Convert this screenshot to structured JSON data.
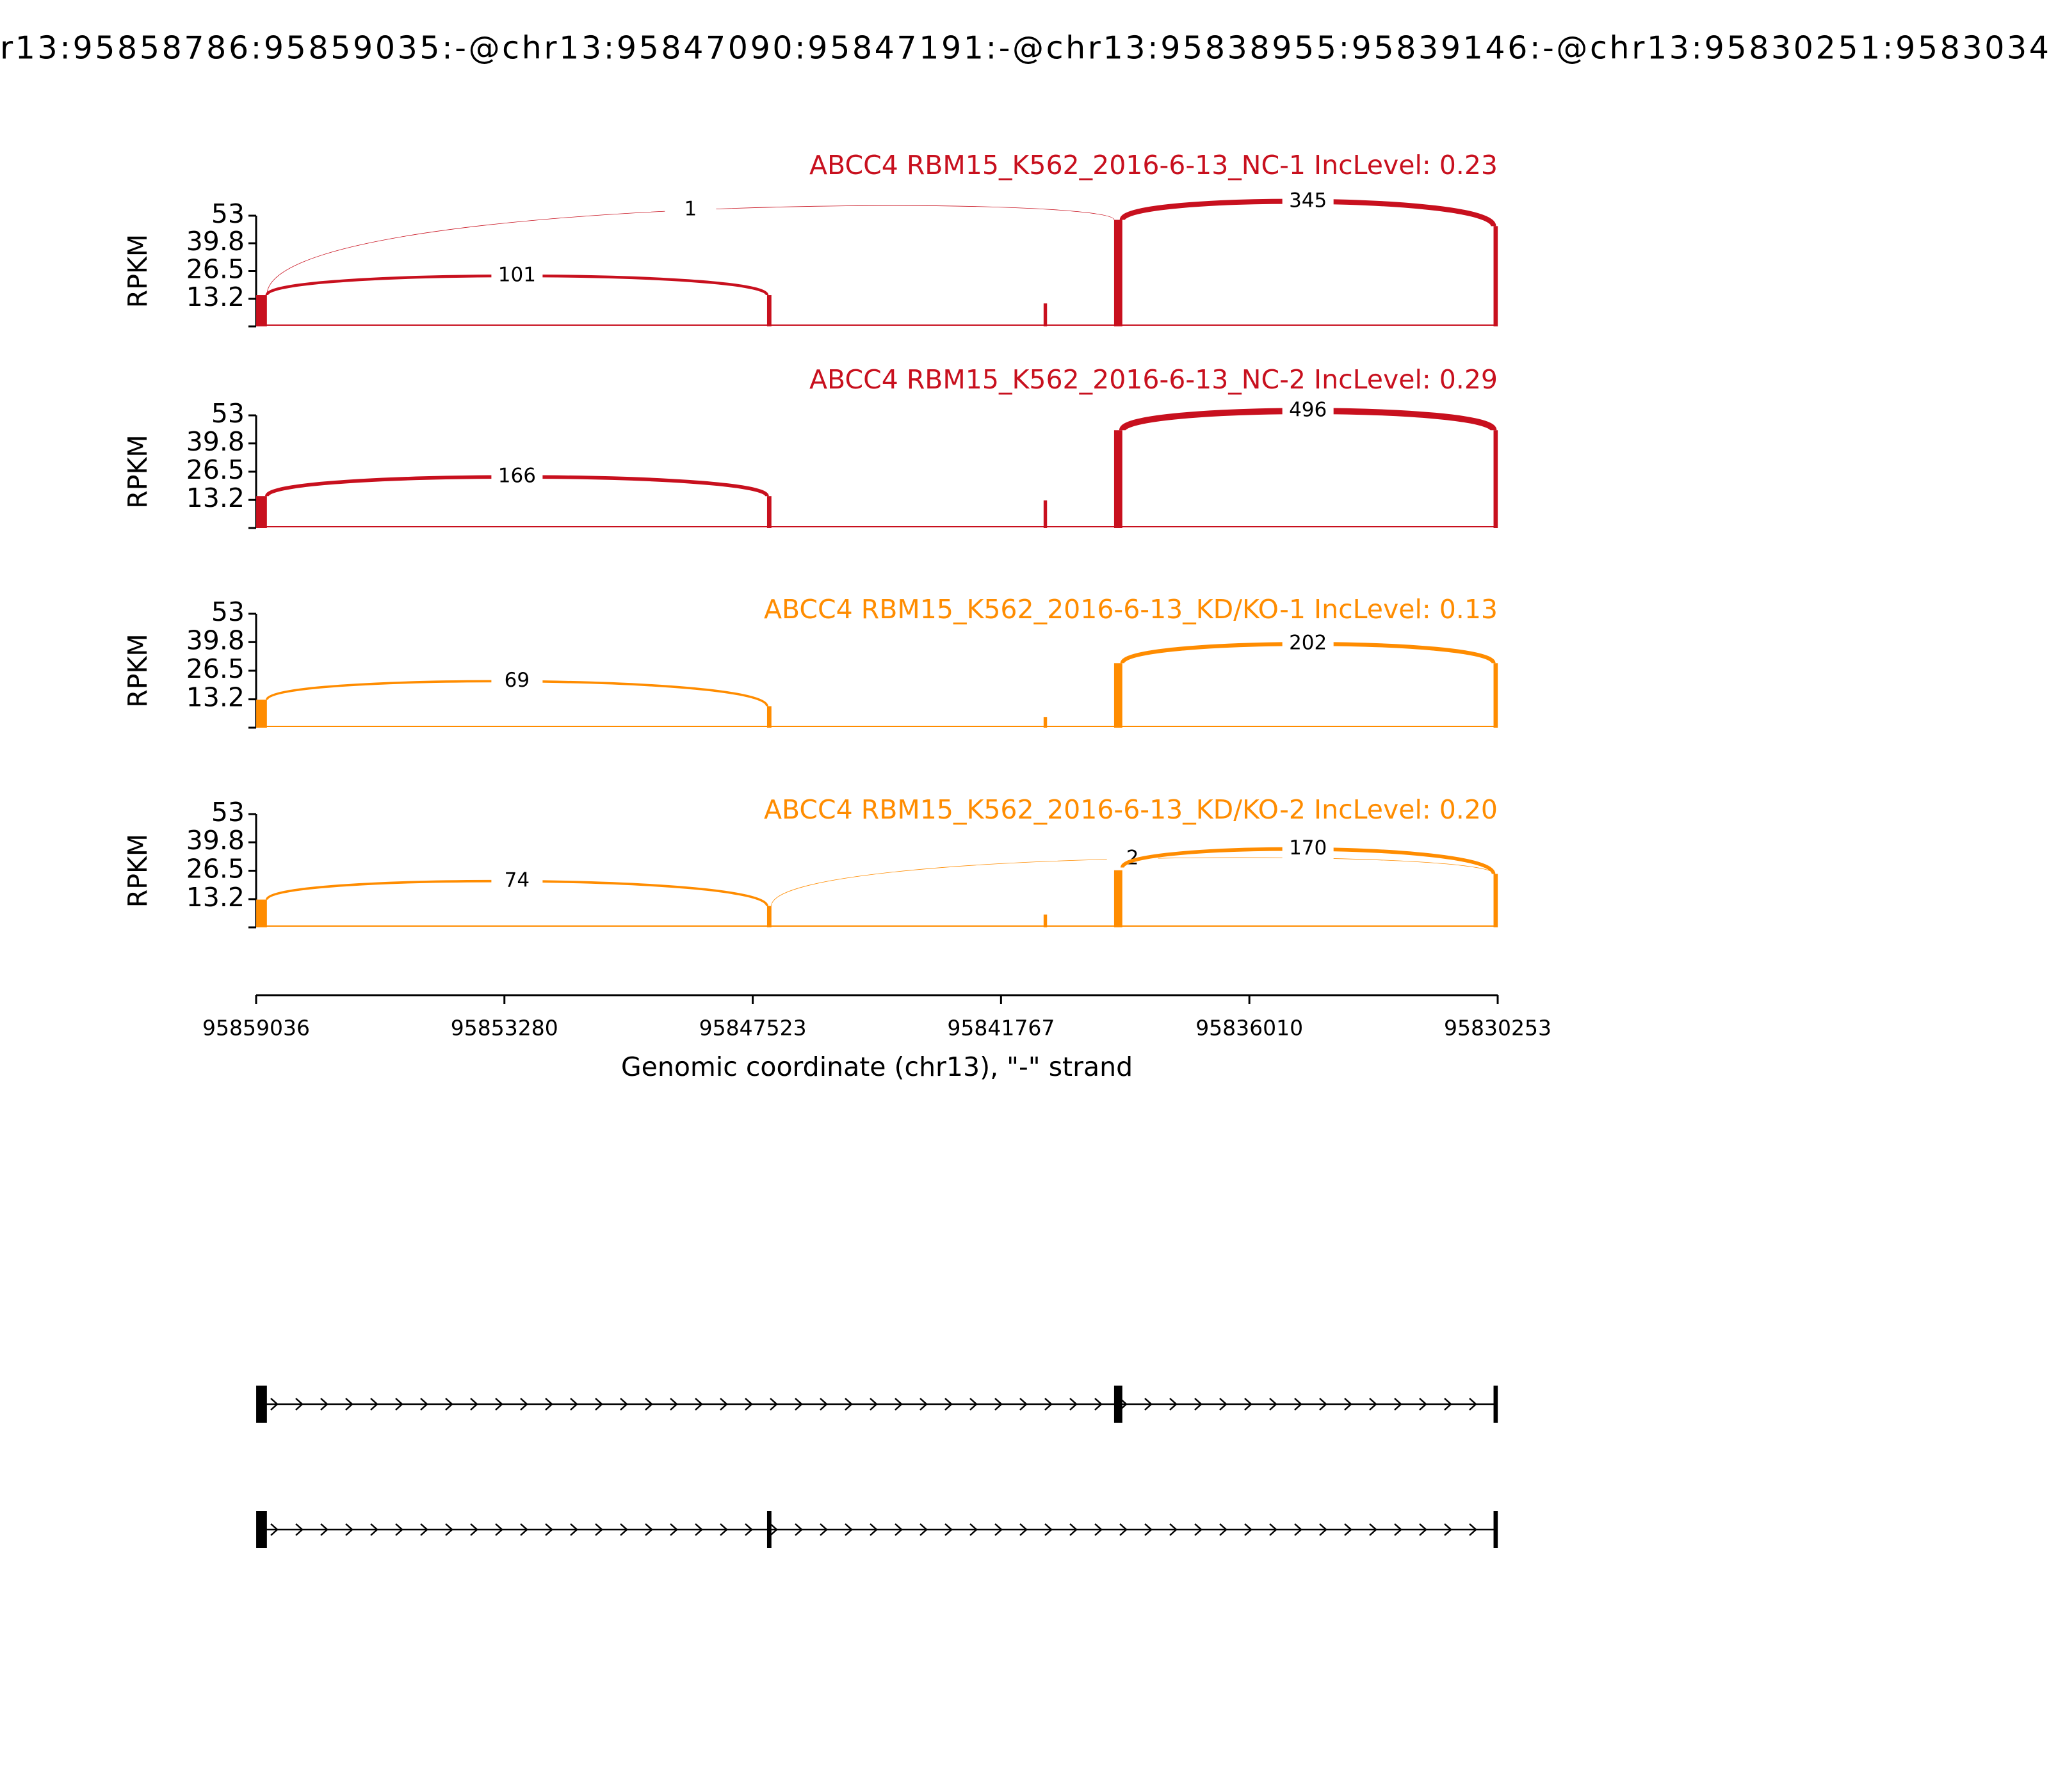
{
  "title": "r13:95858786:95859035:-@chr13:95847090:95847191:-@chr13:95838955:95839146:-@chr13:95830251:9583034",
  "chart_data": [
    {
      "type": "sashimi",
      "title": "ABCC4 RBM15_K562_2016-6-13_NC-1 IncLevel: 0.23",
      "color": "#c8101e",
      "ylabel": "RPKM",
      "ylim": [
        0,
        53
      ],
      "yticks": [
        13.2,
        26.5,
        39.8,
        53
      ],
      "coverage": [
        {
          "x": [
            95859035,
            95858786
          ],
          "value": 15
        },
        {
          "x": [
            95847191,
            95847090
          ],
          "value": 15
        },
        {
          "x": [
            95840780,
            95840700
          ],
          "value": 11
        },
        {
          "x": [
            95839146,
            95838955
          ],
          "value": 51
        },
        {
          "x": [
            95830349,
            95830251
          ],
          "value": 48
        }
      ],
      "junctions": [
        {
          "x": [
            95858786,
            95847191
          ],
          "value": 101
        },
        {
          "x": [
            95858786,
            95839146
          ],
          "value": 1
        },
        {
          "x": [
            95838955,
            95830349
          ],
          "value": 345
        }
      ]
    },
    {
      "type": "sashimi",
      "title": "ABCC4 RBM15_K562_2016-6-13_NC-2 IncLevel: 0.29",
      "color": "#c8101e",
      "ylabel": "RPKM",
      "ylim": [
        0,
        53
      ],
      "yticks": [
        13.2,
        26.5,
        39.8,
        53
      ],
      "coverage": [
        {
          "x": [
            95859035,
            95858786
          ],
          "value": 15
        },
        {
          "x": [
            95847191,
            95847090
          ],
          "value": 15
        },
        {
          "x": [
            95840780,
            95840700
          ],
          "value": 13
        },
        {
          "x": [
            95839146,
            95838955
          ],
          "value": 46
        },
        {
          "x": [
            95830349,
            95830251
          ],
          "value": 46
        }
      ],
      "junctions": [
        {
          "x": [
            95858786,
            95847191
          ],
          "value": 166
        },
        {
          "x": [
            95838955,
            95830349
          ],
          "value": 496
        }
      ]
    },
    {
      "type": "sashimi",
      "title": "ABCC4 RBM15_K562_2016-6-13_KD/KO-1 IncLevel: 0.13",
      "color": "#ff8c00",
      "ylabel": "RPKM",
      "ylim": [
        0,
        53
      ],
      "yticks": [
        13.2,
        26.5,
        39.8,
        53
      ],
      "coverage": [
        {
          "x": [
            95859035,
            95858786
          ],
          "value": 13
        },
        {
          "x": [
            95847191,
            95847090
          ],
          "value": 10
        },
        {
          "x": [
            95840780,
            95840700
          ],
          "value": 5
        },
        {
          "x": [
            95839146,
            95838955
          ],
          "value": 30
        },
        {
          "x": [
            95830349,
            95830251
          ],
          "value": 30
        }
      ],
      "junctions": [
        {
          "x": [
            95858786,
            95847191
          ],
          "value": 69
        },
        {
          "x": [
            95838955,
            95830349
          ],
          "value": 202
        }
      ]
    },
    {
      "type": "sashimi",
      "title": "ABCC4 RBM15_K562_2016-6-13_KD/KO-2 IncLevel: 0.20",
      "color": "#ff8c00",
      "ylabel": "RPKM",
      "ylim": [
        0,
        53
      ],
      "yticks": [
        13.2,
        26.5,
        39.8,
        53
      ],
      "coverage": [
        {
          "x": [
            95859035,
            95858786
          ],
          "value": 13
        },
        {
          "x": [
            95847191,
            95847090
          ],
          "value": 10
        },
        {
          "x": [
            95840780,
            95840700
          ],
          "value": 6
        },
        {
          "x": [
            95839146,
            95838955
          ],
          "value": 28
        },
        {
          "x": [
            95830349,
            95830251
          ],
          "value": 25
        }
      ],
      "junctions": [
        {
          "x": [
            95858786,
            95847191
          ],
          "value": 74
        },
        {
          "x": [
            95847090,
            95830349
          ],
          "value": 2
        },
        {
          "x": [
            95838955,
            95830349
          ],
          "value": 170
        }
      ]
    }
  ],
  "x_axis": {
    "xlabel": "Genomic coordinate (chr13), \"-\" strand",
    "xlim": [
      95859036,
      95830253
    ],
    "xticks": [
      95859036,
      95853280,
      95847523,
      95841767,
      95836010,
      95830253
    ]
  },
  "transcripts": [
    {
      "exons": [
        [
          95859035,
          95858786
        ],
        [
          95839146,
          95838955
        ],
        [
          95830349,
          95830251
        ]
      ]
    },
    {
      "exons": [
        [
          95859035,
          95858786
        ],
        [
          95847191,
          95847090
        ],
        [
          95830349,
          95830251
        ]
      ]
    }
  ]
}
